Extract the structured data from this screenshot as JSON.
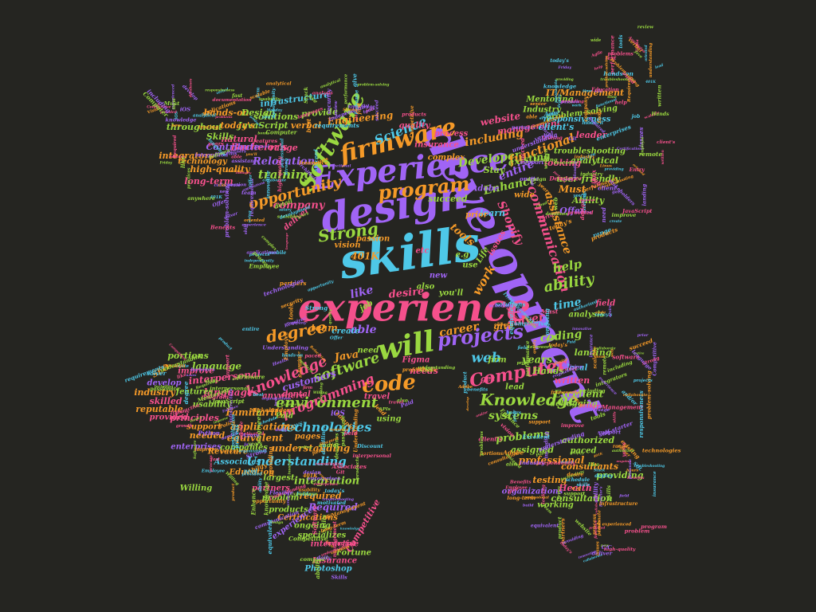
{
  "background": "#252521",
  "palette": [
    "#a064f5",
    "#f5508c",
    "#9ad840",
    "#f59a28",
    "#4ec8e8"
  ],
  "words": [
    {
      "text": "development",
      "color": "#a064f5"
    },
    {
      "text": "experience",
      "color": "#f5508c"
    },
    {
      "text": "skills",
      "color": "#4ec8e8"
    },
    {
      "text": "design",
      "color": "#a064f5"
    },
    {
      "text": "Experience",
      "color": "#a064f5"
    },
    {
      "text": "firmware",
      "color": "#f59a28"
    },
    {
      "text": "will",
      "color": "#9ad840"
    },
    {
      "text": "projects",
      "color": "#a064f5"
    },
    {
      "text": "code",
      "color": "#f59a28"
    },
    {
      "text": "Software",
      "color": "#9ad840"
    },
    {
      "text": "program",
      "color": "#f59a28"
    },
    {
      "text": "Strong",
      "color": "#9ad840"
    },
    {
      "text": "opportunity",
      "color": "#f59a28"
    },
    {
      "text": "software",
      "color": "#9ad840"
    },
    {
      "text": "degree",
      "color": "#f59a28"
    },
    {
      "text": "knowledge",
      "color": "#f5508c"
    },
    {
      "text": "environment",
      "color": "#9ad840"
    },
    {
      "text": "Computer",
      "color": "#f5508c"
    },
    {
      "text": "Knowledge",
      "color": "#9ad840"
    },
    {
      "text": "technologies",
      "color": "#4ec8e8"
    },
    {
      "text": "programming",
      "color": "#f5508c"
    },
    {
      "text": "Understanding",
      "color": "#4ec8e8"
    },
    {
      "text": "communication",
      "color": "#f5508c"
    },
    {
      "text": "assistance",
      "color": "#f59a28"
    },
    {
      "text": "ability",
      "color": "#9ad840"
    },
    {
      "text": "web",
      "color": "#4ec8e8"
    },
    {
      "text": "Science",
      "color": "#4ec8e8"
    },
    {
      "text": "training",
      "color": "#9ad840"
    },
    {
      "text": "Relocation",
      "color": "#a064f5"
    },
    {
      "text": "company",
      "color": "#f5508c"
    },
    {
      "text": "Developer",
      "color": "#9ad840"
    },
    {
      "text": "including",
      "color": "#f59a28"
    },
    {
      "text": "functional",
      "color": "#f59a28"
    },
    {
      "text": "entire",
      "color": "#a064f5"
    },
    {
      "text": "Enhance",
      "color": "#9ad840"
    },
    {
      "text": "existing",
      "color": "#9ad840"
    },
    {
      "text": "management",
      "color": "#f5508c"
    },
    {
      "text": "website",
      "color": "#f5508c"
    },
    {
      "text": "Shopify",
      "color": "#f5508c"
    },
    {
      "text": "help",
      "color": "#9ad840"
    },
    {
      "text": "work",
      "color": "#f59a28"
    },
    {
      "text": "tools",
      "color": "#f59a28"
    },
    {
      "text": "like",
      "color": "#a064f5"
    },
    {
      "text": "desire",
      "color": "#f5508c"
    },
    {
      "text": "able",
      "color": "#a064f5"
    },
    {
      "text": "career",
      "color": "#f59a28"
    },
    {
      "text": "coding",
      "color": "#9ad840"
    },
    {
      "text": "years",
      "color": "#9ad840"
    },
    {
      "text": "systems",
      "color": "#9ad840"
    },
    {
      "text": "problems",
      "color": "#9ad840"
    },
    {
      "text": "professional",
      "color": "#f59a28"
    },
    {
      "text": "Excellent",
      "color": "#9ad840"
    },
    {
      "text": "understanding",
      "color": "#f59a28"
    },
    {
      "text": "integration",
      "color": "#9ad840"
    },
    {
      "text": "required",
      "color": "#f59a28"
    },
    {
      "text": "Required",
      "color": "#a064f5"
    },
    {
      "text": "Familiarity",
      "color": "#f59a28"
    },
    {
      "text": "applications",
      "color": "#f59a28"
    },
    {
      "text": "equivalent",
      "color": "#f59a28"
    },
    {
      "text": "language",
      "color": "#9ad840"
    },
    {
      "text": "languages",
      "color": "#f5508c"
    },
    {
      "text": "interpersonal",
      "color": "#f5508c"
    },
    {
      "text": "customers",
      "color": "#a064f5"
    },
    {
      "text": "Engineering",
      "color": "#f59a28"
    },
    {
      "text": "infrastructure",
      "color": "#4ec8e8"
    },
    {
      "text": "solutions",
      "color": "#9ad840"
    },
    {
      "text": "provide",
      "color": "#9ad840"
    },
    {
      "text": "verbal",
      "color": "#f59a28"
    },
    {
      "text": "Bachelor's",
      "color": "#f5508c"
    },
    {
      "text": "throughout",
      "color": "#9ad840"
    },
    {
      "text": "hands-on",
      "color": "#f59a28"
    },
    {
      "text": "Design",
      "color": "#9ad840"
    },
    {
      "text": "natural",
      "color": "#f5508c"
    },
    {
      "text": "JavaScript",
      "color": "#9ad840"
    },
    {
      "text": "Skills",
      "color": "#9ad840"
    },
    {
      "text": "today's",
      "color": "#f59a28"
    },
    {
      "text": "integrators",
      "color": "#f59a28"
    },
    {
      "text": "Contribute",
      "color": "#a064f5"
    },
    {
      "text": "range",
      "color": "#f5508c"
    },
    {
      "text": "high-quality",
      "color": "#f59a28"
    },
    {
      "text": "long-term",
      "color": "#f5508c"
    },
    {
      "text": "IT/Management",
      "color": "#f59a28"
    },
    {
      "text": "Mentoring",
      "color": "#9ad840"
    },
    {
      "text": "Industry",
      "color": "#9ad840"
    },
    {
      "text": "problem-solving",
      "color": "#9ad840"
    },
    {
      "text": "client's",
      "color": "#4ec8e8"
    },
    {
      "text": "leader",
      "color": "#f5508c"
    },
    {
      "text": "responsiveness",
      "color": "#4ec8e8"
    },
    {
      "text": "troubleshooting",
      "color": "#9ad840"
    },
    {
      "text": "analytical",
      "color": "#9ad840"
    },
    {
      "text": "user-friendly",
      "color": "#9ad840"
    },
    {
      "text": "Stay",
      "color": "#9ad840"
    },
    {
      "text": "looking",
      "color": "#f5508c"
    },
    {
      "text": "Offer",
      "color": "#a064f5"
    },
    {
      "text": "Ability",
      "color": "#9ad840"
    },
    {
      "text": "Must",
      "color": "#f59a28"
    },
    {
      "text": "succeed",
      "color": "#9ad840"
    },
    {
      "text": "learn",
      "color": "#4ec8e8"
    },
    {
      "text": "wide",
      "color": "#f59a28"
    },
    {
      "text": "Adobe",
      "color": "#a064f5"
    },
    {
      "text": "time",
      "color": "#4ec8e8"
    },
    {
      "text": "analysis",
      "color": "#9ad840"
    },
    {
      "text": "landing",
      "color": "#9ad840"
    },
    {
      "text": "written",
      "color": "#f5508c"
    },
    {
      "text": "debugging",
      "color": "#9ad840"
    },
    {
      "text": "authorized",
      "color": "#9ad840"
    },
    {
      "text": "assigned",
      "color": "#9ad840"
    },
    {
      "text": "testing",
      "color": "#f59a28"
    },
    {
      "text": "consultants",
      "color": "#f59a28"
    },
    {
      "text": "providing",
      "color": "#9ad840"
    },
    {
      "text": "consultation",
      "color": "#9ad840"
    },
    {
      "text": "organizations",
      "color": "#a064f5"
    },
    {
      "text": "working",
      "color": "#9ad840"
    },
    {
      "text": "Health",
      "color": "#f5508c"
    },
    {
      "text": "paced",
      "color": "#9ad840"
    },
    {
      "text": "need",
      "color": "#9ad840"
    },
    {
      "text": "team",
      "color": "#f59a28"
    },
    {
      "text": "create",
      "color": "#4ec8e8"
    },
    {
      "text": "give",
      "color": "#f59a28"
    },
    {
      "text": "Java",
      "color": "#f59a28"
    },
    {
      "text": "needs",
      "color": "#f5508c"
    },
    {
      "text": "travel",
      "color": "#f5508c"
    },
    {
      "text": "dental",
      "color": "#f5508c"
    },
    {
      "text": "using",
      "color": "#9ad840"
    },
    {
      "text": "Willing",
      "color": "#9ad840"
    },
    {
      "text": "portions",
      "color": "#9ad840"
    },
    {
      "text": "develop",
      "color": "#a064f5"
    },
    {
      "text": "industry",
      "color": "#f59a28"
    },
    {
      "text": "improve",
      "color": "#f5508c"
    },
    {
      "text": "skilled",
      "color": "#f5508c"
    },
    {
      "text": "reputable",
      "color": "#f59a28"
    },
    {
      "text": "principles",
      "color": "#f5508c"
    },
    {
      "text": "usability",
      "color": "#9ad840"
    },
    {
      "text": "features",
      "color": "#9ad840"
    },
    {
      "text": "provided",
      "color": "#f5508c"
    },
    {
      "text": "needed",
      "color": "#f59a28"
    },
    {
      "text": "enterprises",
      "color": "#a064f5"
    },
    {
      "text": "support",
      "color": "#f59a28"
    },
    {
      "text": "Revature",
      "color": "#f59a28"
    },
    {
      "text": "Associates",
      "color": "#4ec8e8"
    },
    {
      "text": "Education",
      "color": "#f59a28"
    },
    {
      "text": "largest",
      "color": "#9ad840"
    },
    {
      "text": "partners",
      "color": "#f5508c"
    },
    {
      "text": "problem",
      "color": "#9ad840"
    },
    {
      "text": "products",
      "color": "#9ad840"
    },
    {
      "text": "Certifications",
      "color": "#f59a28"
    },
    {
      "text": "ongoing",
      "color": "#9ad840"
    },
    {
      "text": "specializes",
      "color": "#9ad840"
    },
    {
      "text": "interactive",
      "color": "#f5508c"
    },
    {
      "text": "Fortune",
      "color": "#9ad840"
    },
    {
      "text": "Insurance",
      "color": "#f5508c"
    },
    {
      "text": "Photoshop",
      "color": "#4ec8e8"
    },
    {
      "text": "Competitive",
      "color": "#f5508c"
    },
    {
      "text": "companies",
      "color": "#9ad840"
    },
    {
      "text": "experienced",
      "color": "#a064f5"
    },
    {
      "text": "pages",
      "color": "#f59a28"
    },
    {
      "text": "Paid",
      "color": "#9ad840"
    },
    {
      "text": "anywhere",
      "color": "#f5508c"
    },
    {
      "text": "iOS",
      "color": "#a064f5"
    },
    {
      "text": "401K",
      "color": "#f59a28"
    },
    {
      "text": "you'll",
      "color": "#9ad840"
    },
    {
      "text": "also",
      "color": "#9ad840"
    },
    {
      "text": "new",
      "color": "#a064f5"
    },
    {
      "text": "etc",
      "color": "#f5508c"
    },
    {
      "text": "use",
      "color": "#9ad840"
    },
    {
      "text": "passion",
      "color": "#f59a28"
    },
    {
      "text": "vision",
      "color": "#f59a28"
    },
    {
      "text": "Life",
      "color": "#9ad840"
    },
    {
      "text": "issues",
      "color": "#f5508c"
    },
    {
      "text": "complex",
      "color": "#f59a28"
    },
    {
      "text": "process",
      "color": "#f5508c"
    },
    {
      "text": "quality",
      "color": "#f5508c"
    },
    {
      "text": "insurance",
      "color": "#f5508c"
    },
    {
      "text": "technology",
      "color": "#f59a28"
    },
    {
      "text": "deliver",
      "color": "#f5508c"
    },
    {
      "text": "solver",
      "color": "#f5508c"
    },
    {
      "text": "firm",
      "color": "#9ad840"
    },
    {
      "text": "Hands",
      "color": "#9ad840"
    },
    {
      "text": "get",
      "color": "#f5508c"
    },
    {
      "text": "lead",
      "color": "#9ad840"
    },
    {
      "text": "local",
      "color": "#4ec8e8"
    },
    {
      "text": "job",
      "color": "#9ad840"
    },
    {
      "text": "prior",
      "color": "#f59a28"
    },
    {
      "text": "field",
      "color": "#f5508c"
    },
    {
      "text": "e.g",
      "color": "#9ad840"
    },
    {
      "text": "Figma",
      "color": "#f5508c"
    },
    {
      "text": "SEO",
      "color": "#f59a28"
    },
    {
      "text": "C/C",
      "color": "#9ad840"
    },
    {
      "text": "and/or",
      "color": "#a064f5"
    },
    {
      "text": "Policy",
      "color": "#9ad840"
    },
    {
      "text": "Stack",
      "color": "#4ec8e8"
    },
    {
      "text": "Full",
      "color": "#f59a28"
    },
    {
      "text": "Level",
      "color": "#9ad840"
    },
    {
      "text": "Entry",
      "color": "#f5508c"
    },
    {
      "text": "senior",
      "color": "#a064f5"
    },
    {
      "text": "best",
      "color": "#9ad840"
    },
    {
      "text": "practices",
      "color": "#f59a28"
    },
    {
      "text": "React",
      "color": "#4ec8e8"
    },
    {
      "text": "Python",
      "color": "#9ad840"
    },
    {
      "text": "SQL",
      "color": "#f59a28"
    },
    {
      "text": "HTML",
      "color": "#f5508c"
    },
    {
      "text": "CSS",
      "color": "#a064f5"
    },
    {
      "text": "Agile",
      "color": "#9ad840"
    },
    {
      "text": "Git",
      "color": "#f59a28"
    },
    {
      "text": "Linux",
      "color": "#4ec8e8"
    },
    {
      "text": "cloud",
      "color": "#f5508c"
    },
    {
      "text": "AWS",
      "color": "#9ad840"
    },
    {
      "text": "Azure",
      "color": "#a064f5"
    },
    {
      "text": "mobile",
      "color": "#f59a28"
    },
    {
      "text": "growth",
      "color": "#9ad840"
    },
    {
      "text": "benefits",
      "color": "#f5508c"
    },
    {
      "text": "remote",
      "color": "#4ec8e8"
    },
    {
      "text": "onsite",
      "color": "#9ad840"
    },
    {
      "text": "client",
      "color": "#f59a28"
    },
    {
      "text": "build",
      "color": "#a064f5"
    },
    {
      "text": "maintain",
      "color": "#9ad840"
    },
    {
      "text": "test",
      "color": "#f5508c"
    },
    {
      "text": "deploy",
      "color": "#f59a28"
    },
    {
      "text": "review",
      "color": "#9ad840"
    },
    {
      "text": "support",
      "color": "#4ec8e8"
    },
    {
      "text": "daily",
      "color": "#9ad840"
    },
    {
      "text": "fast",
      "color": "#f5508c"
    },
    {
      "text": "motivated",
      "color": "#f59a28"
    },
    {
      "text": "detail",
      "color": "#9ad840"
    },
    {
      "text": "oriented",
      "color": "#a064f5"
    },
    {
      "text": "collaborate",
      "color": "#9ad840"
    },
    {
      "text": "engineers",
      "color": "#f59a28"
    },
    {
      "text": "product",
      "color": "#f5508c"
    },
    {
      "text": "owners",
      "color": "#9ad840"
    },
    {
      "text": "stakeholders",
      "color": "#4ec8e8"
    },
    {
      "text": "deadlines",
      "color": "#9ad840"
    },
    {
      "text": "documentation",
      "color": "#f59a28"
    },
    {
      "text": "requirements",
      "color": "#f5508c"
    },
    {
      "text": "architecture",
      "color": "#9ad840"
    },
    {
      "text": "scalable",
      "color": "#a064f5"
    },
    {
      "text": "performance",
      "color": "#9ad840"
    },
    {
      "text": "security",
      "color": "#f59a28"
    },
    {
      "text": "databases",
      "color": "#9ad840"
    },
    {
      "text": "APIs",
      "color": "#f5508c"
    },
    {
      "text": "frameworks",
      "color": "#9ad840"
    },
    {
      "text": "modern",
      "color": "#4ec8e8"
    },
    {
      "text": "innovative",
      "color": "#9ad840"
    },
    {
      "text": "creative",
      "color": "#f59a28"
    },
    {
      "text": "passionate",
      "color": "#f5508c"
    },
    {
      "text": "self-starter",
      "color": "#9ad840"
    },
    {
      "text": "independently",
      "color": "#a064f5"
    },
    {
      "text": "teamwork",
      "color": "#9ad840"
    },
    {
      "text": "certified",
      "color": "#f59a28"
    },
    {
      "text": "bonus",
      "color": "#9ad840"
    },
    {
      "text": "salary",
      "color": "#f5508c"
    },
    {
      "text": "vacation",
      "color": "#9ad840"
    },
    {
      "text": "Employee",
      "color": "#4ec8e8"
    },
    {
      "text": "Discount",
      "color": "#9ad840"
    },
    {
      "text": "Vision",
      "color": "#f59a28"
    },
    {
      "text": "Dental",
      "color": "#9ad840"
    },
    {
      "text": "Flexible",
      "color": "#f5508c"
    },
    {
      "text": "schedule",
      "color": "#9ad840"
    },
    {
      "text": "Monday",
      "color": "#a064f5"
    },
    {
      "text": "Friday",
      "color": "#9ad840"
    },
    {
      "text": "hours",
      "color": "#f59a28"
    },
    {
      "text": "shift",
      "color": "#9ad840"
    },
    {
      "text": "Benefits",
      "color": "#f5508c"
    }
  ]
}
